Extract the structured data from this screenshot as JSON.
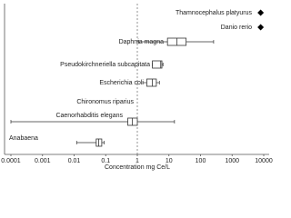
{
  "chart_data": {
    "type": "boxplot",
    "x_label": "Concentration mg Ce/L",
    "categories": [
      "Thamnocephalus platyurus",
      "Danio rerio",
      "Daphnia magna",
      "Pseudokirchneriella subcapitata",
      "Escherichia coli",
      "Chironomus riparius",
      "Caenorhabditis elegans",
      "Anabaena"
    ],
    "min": [
      null,
      null,
      1.1,
      3,
      1.5,
      null,
      0.0001,
      0.012
    ],
    "q1": [
      null,
      null,
      9,
      3,
      2,
      null,
      0.5,
      0.05
    ],
    "median": [
      null,
      null,
      18,
      5.5,
      3,
      null,
      0.7,
      0.06
    ],
    "q3": [
      null,
      null,
      35,
      6,
      4,
      null,
      1,
      0.075
    ],
    "max": [
      null,
      null,
      260,
      6.5,
      5,
      null,
      15,
      0.09
    ],
    "points": [
      8000,
      8000,
      null,
      null,
      null,
      null,
      null,
      null
    ],
    "xscale": "log",
    "xlim": [
      0.0001,
      10000
    ],
    "xticks": [
      0.0001,
      0.001,
      0.01,
      0.1,
      1,
      10,
      100,
      1000,
      10000
    ],
    "reference_line": 1,
    "color": "#333333"
  }
}
